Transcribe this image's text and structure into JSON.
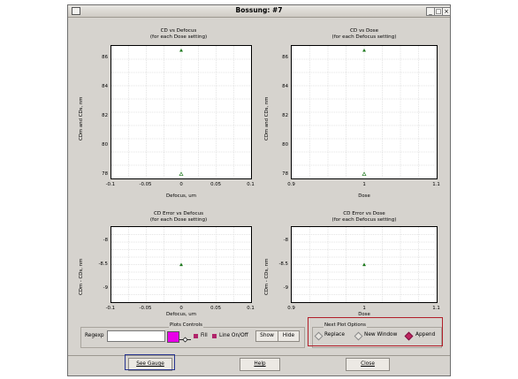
{
  "window": {
    "title": "Bossung: #7",
    "controls": [
      "minimize",
      "maximize",
      "close"
    ]
  },
  "plots": [
    {
      "title_line1": "CD vs Defocus",
      "title_line2": "(for each Dose setting)",
      "ylabel": "CDm and CDs, nm",
      "xlabel": "Defocus, um",
      "yticks": [
        "86",
        "84",
        "82",
        "80",
        "78"
      ],
      "xticks": [
        "-0.1",
        "-0.05",
        "0",
        "0.05",
        "0.1"
      ],
      "points": [
        {
          "x": 0,
          "y": 86.5,
          "symbol": "filled-triangle"
        },
        {
          "x": 0,
          "y": 78,
          "symbol": "hollow-triangle"
        }
      ],
      "xlim": [
        -0.1,
        0.1
      ],
      "ylim": [
        77.7,
        86.8
      ]
    },
    {
      "title_line1": "CD vs Dose",
      "title_line2": "(for each Defocus setting)",
      "ylabel": "CDm and CDs, nm",
      "xlabel": "Dose",
      "yticks": [
        "86",
        "84",
        "82",
        "80",
        "78"
      ],
      "xticks": [
        "0.9",
        "1",
        "1.1"
      ],
      "points": [
        {
          "x": 1,
          "y": 86.5,
          "symbol": "filled-triangle"
        },
        {
          "x": 1,
          "y": 78,
          "symbol": "hollow-triangle"
        }
      ],
      "xlim": [
        0.9,
        1.1
      ],
      "ylim": [
        77.7,
        86.8
      ]
    },
    {
      "title_line1": "CD Error vs Defocus",
      "title_line2": "(for each Dose setting)",
      "ylabel": "CDm - CDs, nm",
      "xlabel": "Defocus, um",
      "yticks": [
        "-8",
        "-8.5",
        "-9"
      ],
      "xticks": [
        "-0.1",
        "-0.05",
        "0",
        "0.05",
        "0.1"
      ],
      "points": [
        {
          "x": 0,
          "y": -8.5,
          "symbol": "filled-triangle"
        }
      ],
      "xlim": [
        -0.1,
        0.1
      ],
      "ylim": [
        -9.3,
        -7.7
      ]
    },
    {
      "title_line1": "CD Error vs Dose",
      "title_line2": "(for each Defocus setting)",
      "ylabel": "CDm - CDs, nm",
      "xlabel": "Dose",
      "yticks": [
        "-8",
        "-8.5",
        "-9"
      ],
      "xticks": [
        "0.9",
        "1",
        "1.1"
      ],
      "points": [
        {
          "x": 1,
          "y": -8.5,
          "symbol": "filled-triangle"
        }
      ],
      "xlim": [
        0.9,
        1.1
      ],
      "ylim": [
        -9.3,
        -7.7
      ]
    }
  ],
  "plots_controls": {
    "group_label": "Plots Controls",
    "regexp_label": "Regexp",
    "regexp_value": "",
    "swatch_color": "#e800e8",
    "fill_label": "Fill",
    "line_label": "Line On/Off",
    "show_label": "Show",
    "hide_label": "Hide"
  },
  "next_plot_options": {
    "group_label": "Next Plot Options",
    "options": [
      "Replace",
      "New Window",
      "Append"
    ],
    "selected": "Append"
  },
  "footer": {
    "see_gauge": "See Gauge",
    "help": "Help",
    "close": "Close"
  },
  "colors": {
    "accent_red": "#b11f2a",
    "accent_blue": "#27348f",
    "point_green": "#1f7a1f",
    "swatch_magenta": "#e800e8"
  }
}
